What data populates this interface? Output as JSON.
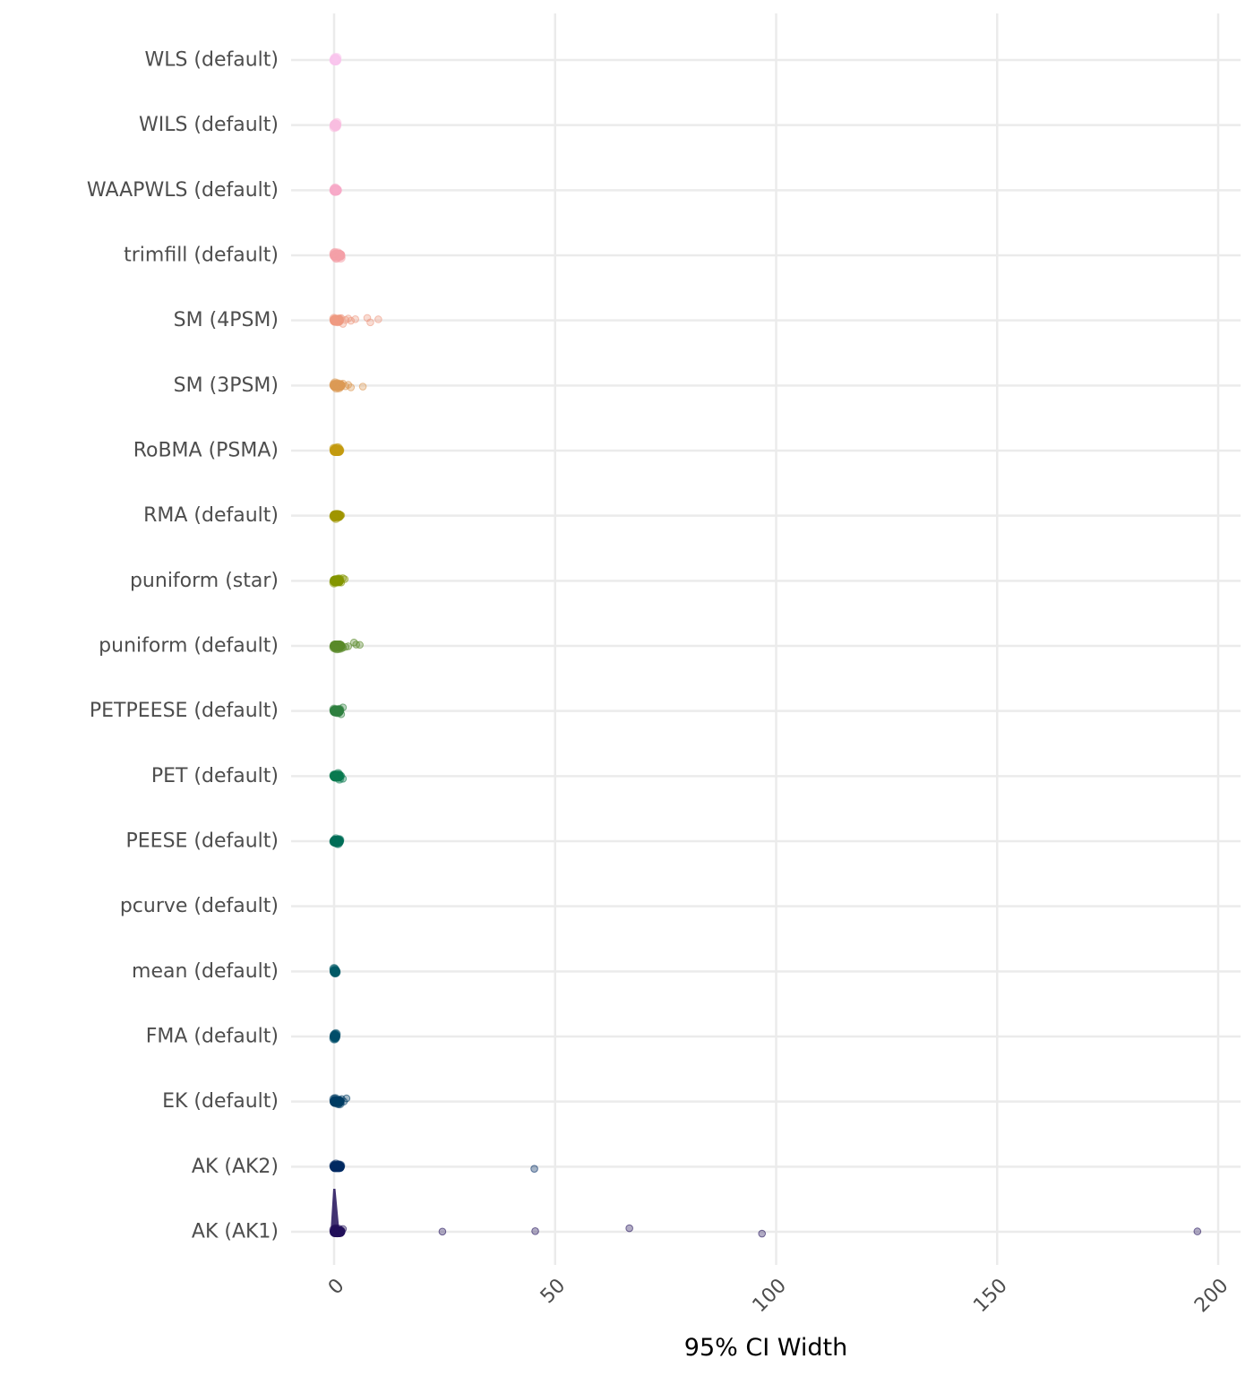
{
  "chart_data": {
    "type": "scatter",
    "title": "",
    "xlabel": "95% CI Width",
    "ylabel": "",
    "xlim": [
      -10,
      205
    ],
    "xticks": [
      "0",
      "50",
      "100",
      "150",
      "200"
    ],
    "grid": true,
    "legend": "none",
    "categories": [
      {
        "name": "WLS (default)",
        "color": "#f9c6ee",
        "values": [
          0,
          0.1,
          0.2,
          0.3,
          0.4,
          0.5,
          0.6
        ]
      },
      {
        "name": "WILS (default)",
        "color": "#f9bde0",
        "values": [
          0,
          0.1,
          0.2,
          0.3,
          0.4,
          0.5,
          0.6
        ]
      },
      {
        "name": "WAAPWLS (default)",
        "color": "#f7aac8",
        "values": [
          0,
          0.1,
          0.2,
          0.3,
          0.5,
          0.7
        ]
      },
      {
        "name": "trimfill (default)",
        "color": "#f4a0a8",
        "values": [
          0,
          0.2,
          0.4,
          0.6,
          0.9,
          1.2,
          1.5
        ]
      },
      {
        "name": "SM (4PSM)",
        "color": "#ef9a82",
        "values": [
          0,
          0.2,
          0.5,
          0.8,
          1.2,
          1.6,
          2.0,
          2.6,
          3.2,
          3.8,
          4.8,
          7.5,
          8.2,
          10.0
        ]
      },
      {
        "name": "SM (3PSM)",
        "color": "#dc9a55",
        "values": [
          0,
          0.2,
          0.5,
          0.8,
          1.1,
          1.5,
          2.0,
          2.6,
          3.2,
          3.8,
          6.5
        ]
      },
      {
        "name": "RoBMA (PSMA)",
        "color": "#c49a10",
        "values": [
          0,
          0.2,
          0.4,
          0.6,
          0.9,
          1.2
        ]
      },
      {
        "name": "RMA (default)",
        "color": "#a09600",
        "values": [
          0,
          0.2,
          0.4,
          0.6,
          0.9,
          1.2,
          1.6
        ]
      },
      {
        "name": "puniform (star)",
        "color": "#849600",
        "values": [
          0,
          0.3,
          0.6,
          0.9,
          1.2,
          1.6,
          2.0,
          2.4
        ]
      },
      {
        "name": "puniform (default)",
        "color": "#5a8a2a",
        "values": [
          0,
          0.3,
          0.6,
          1.0,
          1.5,
          2.0,
          2.6,
          3.2,
          4.5,
          5.0,
          5.8
        ]
      },
      {
        "name": "PETPEESE (default)",
        "color": "#2f8040",
        "values": [
          0,
          0.3,
          0.6,
          0.9,
          1.2,
          1.6,
          2.0
        ]
      },
      {
        "name": "PET (default)",
        "color": "#0a7a50",
        "values": [
          0,
          0.3,
          0.6,
          0.9,
          1.2,
          1.6,
          2.0
        ]
      },
      {
        "name": "PEESE (default)",
        "color": "#006e58",
        "values": [
          0,
          0.2,
          0.4,
          0.6,
          0.9,
          1.2
        ]
      },
      {
        "name": "pcurve (default)",
        "color": "#006060",
        "values": []
      },
      {
        "name": "mean (default)",
        "color": "#005a66",
        "values": [
          0,
          0.1,
          0.2,
          0.3,
          0.4
        ]
      },
      {
        "name": "FMA (default)",
        "color": "#004d6a",
        "values": [
          0,
          0.1,
          0.2,
          0.3,
          0.4
        ]
      },
      {
        "name": "EK (default)",
        "color": "#003d64",
        "values": [
          0,
          0.3,
          0.6,
          0.9,
          1.3,
          1.7,
          2.2,
          2.8
        ]
      },
      {
        "name": "AK (AK2)",
        "color": "#002a62",
        "values": [
          0,
          0.2,
          0.4,
          0.7,
          1.0,
          1.4,
          45.3
        ]
      },
      {
        "name": "AK (AK1)",
        "color": "#22105a",
        "values": [
          0,
          0.2,
          0.4,
          0.7,
          1.0,
          1.5,
          2.0,
          24.5,
          45.5,
          66.8,
          96.8,
          195.3
        ]
      }
    ]
  }
}
